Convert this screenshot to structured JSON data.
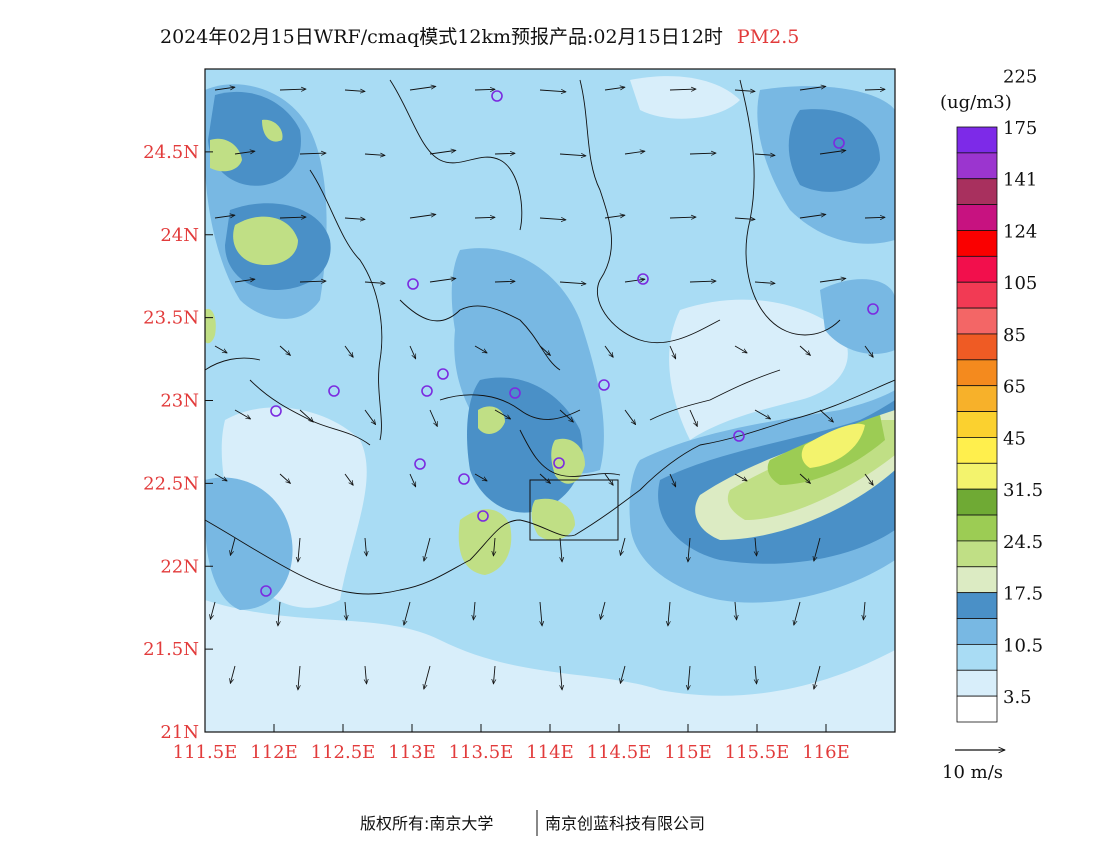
{
  "title": {
    "main": "2024年02月15日WRF/cmaq模式12km预报产品:02月15日12时",
    "variable": "PM2.5"
  },
  "map": {
    "lon_range": [
      111.5,
      116.5
    ],
    "lat_range": [
      21,
      25
    ],
    "lon_ticks": [
      "111.5E",
      "112E",
      "112.5E",
      "113E",
      "113.5E",
      "114E",
      "114.5E",
      "115E",
      "115.5E",
      "116E"
    ],
    "lat_ticks": [
      "21N",
      "21.5N",
      "22N",
      "22.5N",
      "23N",
      "23.5N",
      "24N",
      "24.5N"
    ]
  },
  "legend": {
    "unit": "(ug/m3)",
    "colors": [
      "#ffffff",
      "#d8eefa",
      "#a9dcf4",
      "#78b8e3",
      "#4a90c7",
      "#dcebc3",
      "#c0df85",
      "#9ccc54",
      "#6faa34",
      "#f3f36d",
      "#ffef4d",
      "#fbd12f",
      "#f7b12a",
      "#f48a1e",
      "#ef5b24",
      "#f36666",
      "#f23a54",
      "#f20f4c",
      "#fa0000",
      "#c71280",
      "#a8305e",
      "#9b35cf",
      "#7d2ae8"
    ],
    "labels": [
      "3.5",
      "10.5",
      "17.5",
      "24.5",
      "31.5",
      "45",
      "65",
      "85",
      "105",
      "124",
      "141",
      "175",
      "225"
    ]
  },
  "wind_reference": {
    "label": "10 m/s"
  },
  "footer": {
    "left": "版权所有:南京大学",
    "right": "南京创蓝科技有限公司"
  },
  "colors": {
    "accent_red": "#e23b3b",
    "marker": "#7b2be0"
  }
}
